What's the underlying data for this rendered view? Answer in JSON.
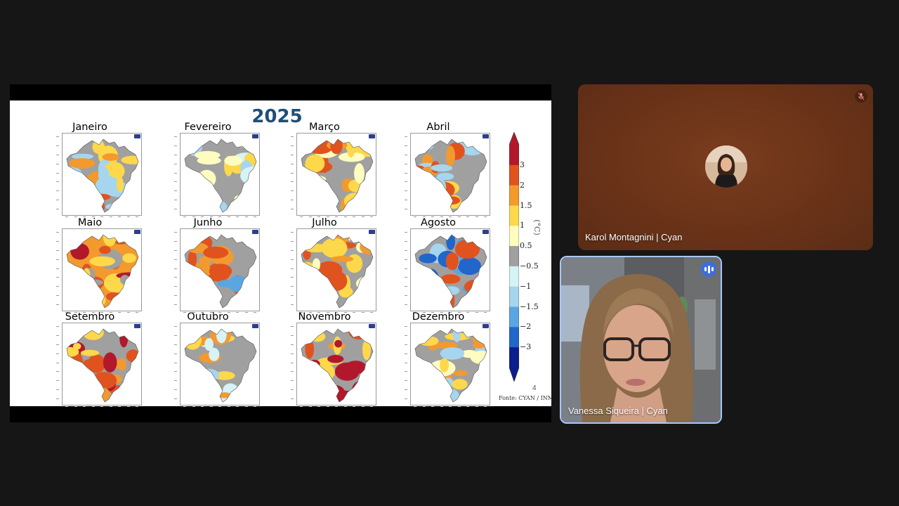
{
  "slide": {
    "title": "2025",
    "page_number": "4",
    "source": "Fonte: CYAN / INMET",
    "unit": "(°C)",
    "months": [
      "Janeiro",
      "Fevereiro",
      "Março",
      "Abril",
      "Maio",
      "Junho",
      "Julho",
      "Agosto",
      "Setembro",
      "Outubro",
      "Novembro",
      "Dezembro"
    ],
    "colorbar": {
      "labels": [
        "3",
        "2",
        "1.5",
        "1",
        "0.5",
        "−0.5",
        "−1",
        "−1.5",
        "−2",
        "−3"
      ],
      "colors": [
        "#b2182b",
        "#e0531f",
        "#f29a2e",
        "#fdd84b",
        "#fffcc0",
        "#a0a0a0",
        "#d6f3f7",
        "#a6d5ef",
        "#5aa6e0",
        "#2166c9",
        "#0b1e8c"
      ]
    }
  },
  "participants": {
    "karol": {
      "name": "Karol Montagnini | Cyan"
    },
    "vanessa": {
      "name": "Vanessa Siqueira | Cyan"
    }
  }
}
